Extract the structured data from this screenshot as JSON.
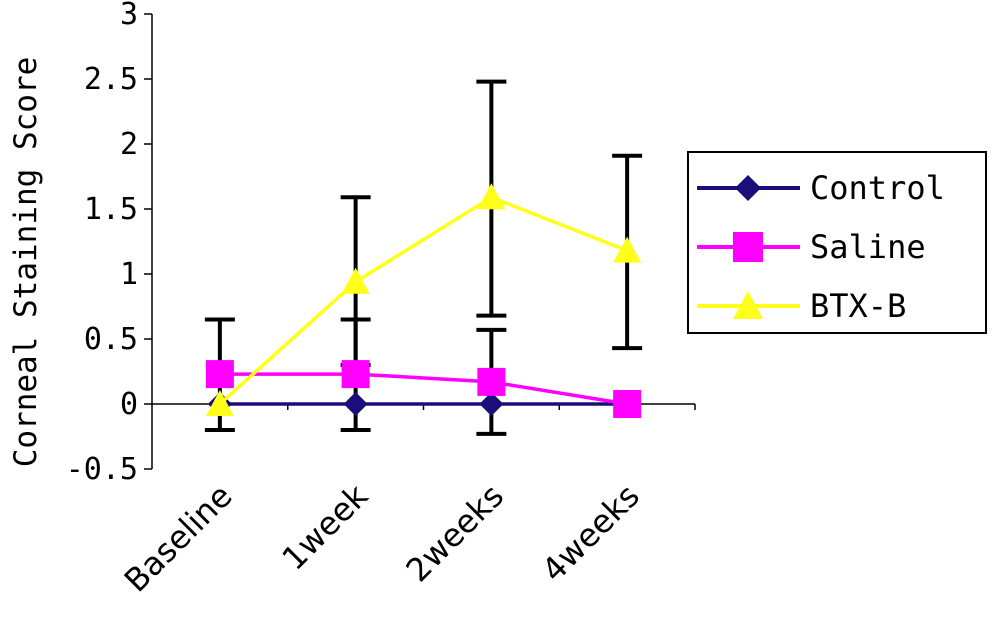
{
  "chart_data": {
    "type": "line",
    "ylabel": "Corneal Staining Score",
    "xlabel": "",
    "categories": [
      "Baseline",
      "1week",
      "2weeks",
      "4weeks"
    ],
    "ylim": [
      -0.5,
      3
    ],
    "yticks": [
      "-0.5",
      "0",
      "0.5",
      "1",
      "1.5",
      "2",
      "2.5",
      "3"
    ],
    "ytick_values": [
      -0.5,
      0,
      0.5,
      1,
      1.5,
      2,
      2.5,
      3
    ],
    "grid": false,
    "legend_position": "right",
    "series": [
      {
        "name": "Control",
        "color": "#1a0f7a",
        "marker": "diamond",
        "values": [
          0,
          0,
          0,
          0
        ]
      },
      {
        "name": "Saline",
        "color": "#ff00ff",
        "marker": "square",
        "values": [
          0.23,
          0.23,
          0.17,
          0
        ]
      },
      {
        "name": "BTX-B",
        "color": "#ffff1a",
        "marker": "triangle",
        "values": [
          0,
          0.94,
          1.59,
          1.18
        ]
      }
    ],
    "error_bars": [
      {
        "category": "Baseline",
        "lower": -0.2,
        "upper": 0.65
      },
      {
        "category": "1week",
        "lower": -0.2,
        "upper": 0.65
      },
      {
        "category": "1week",
        "lower": 0.3,
        "upper": 1.59
      },
      {
        "category": "2weeks",
        "lower": -0.23,
        "upper": 0.57
      },
      {
        "category": "2weeks",
        "lower": 0.68,
        "upper": 2.48
      },
      {
        "category": "4weeks",
        "lower": 0.43,
        "upper": 1.91
      }
    ]
  }
}
